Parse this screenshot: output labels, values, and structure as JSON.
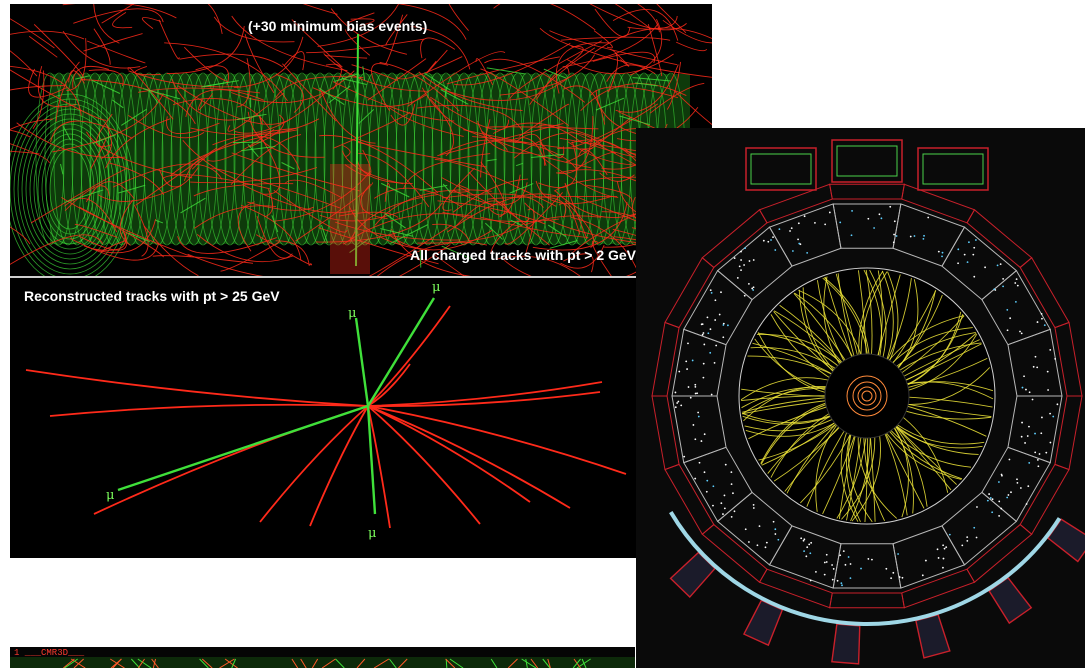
{
  "top_panel": {
    "caption": "(+30 minimum bias events)",
    "tracks_label": "All charged tracks with pt > 2 GeV"
  },
  "bottom_panel": {
    "caption": "Reconstructed tracks with pt > 25 GeV",
    "muon_label": "μ"
  },
  "strip": {
    "label": "1 ___CMR3D___"
  },
  "colors": {
    "track_red": "#ff2a1a",
    "track_green": "#3fe03a",
    "track_yellow": "#f2e93a",
    "detector_red": "#c8202a"
  }
}
